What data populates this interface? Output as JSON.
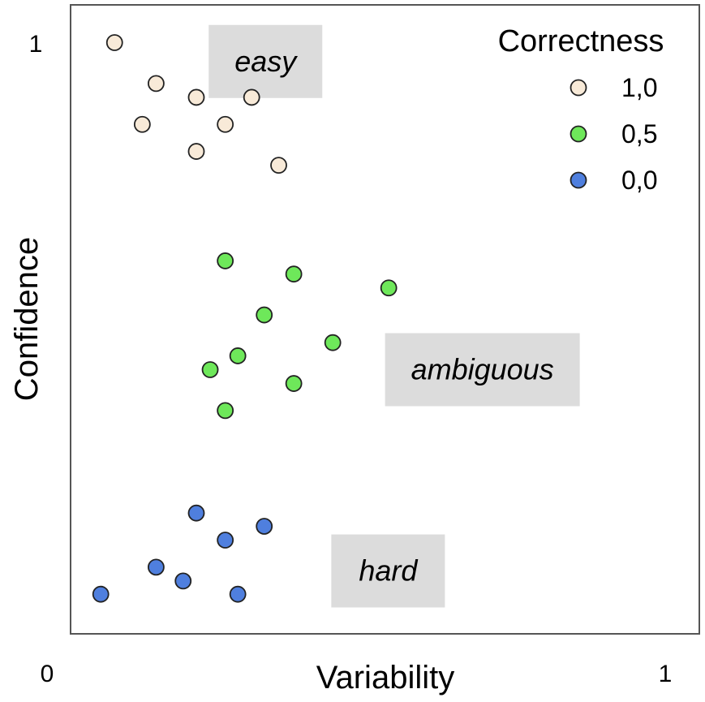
{
  "chart_data": {
    "type": "scatter",
    "title": "",
    "xlabel": "Variability",
    "ylabel": "Confidence",
    "xlim": [
      0,
      1
    ],
    "ylim": [
      0,
      1
    ],
    "x_ticks": [
      "0",
      "1"
    ],
    "y_ticks": [
      "0",
      "1"
    ],
    "grid": false,
    "legend": {
      "title": "Correctness",
      "position": "top-right"
    },
    "series": [
      {
        "name": "1,0",
        "color": "#f8ead8",
        "points": [
          {
            "x": 0.07,
            "y": 0.94
          },
          {
            "x": 0.136,
            "y": 0.875
          },
          {
            "x": 0.2,
            "y": 0.853
          },
          {
            "x": 0.288,
            "y": 0.853
          },
          {
            "x": 0.114,
            "y": 0.81
          },
          {
            "x": 0.246,
            "y": 0.81
          },
          {
            "x": 0.2,
            "y": 0.767
          },
          {
            "x": 0.331,
            "y": 0.745
          }
        ]
      },
      {
        "name": "0,5",
        "color": "#6ee85a",
        "points": [
          {
            "x": 0.246,
            "y": 0.593
          },
          {
            "x": 0.355,
            "y": 0.572
          },
          {
            "x": 0.506,
            "y": 0.55
          },
          {
            "x": 0.308,
            "y": 0.507
          },
          {
            "x": 0.417,
            "y": 0.463
          },
          {
            "x": 0.266,
            "y": 0.442
          },
          {
            "x": 0.222,
            "y": 0.42
          },
          {
            "x": 0.355,
            "y": 0.398
          },
          {
            "x": 0.246,
            "y": 0.355
          }
        ]
      },
      {
        "name": "0,0",
        "color": "#4f7fde",
        "points": [
          {
            "x": 0.2,
            "y": 0.192
          },
          {
            "x": 0.308,
            "y": 0.171
          },
          {
            "x": 0.246,
            "y": 0.149
          },
          {
            "x": 0.136,
            "y": 0.106
          },
          {
            "x": 0.179,
            "y": 0.084
          },
          {
            "x": 0.048,
            "y": 0.063
          },
          {
            "x": 0.266,
            "y": 0.063
          }
        ]
      }
    ],
    "annotations": [
      {
        "text": "easy",
        "x": 0.31,
        "y": 0.91
      },
      {
        "text": "ambiguous",
        "x": 0.655,
        "y": 0.42
      },
      {
        "text": "hard",
        "x": 0.505,
        "y": 0.1
      }
    ]
  }
}
